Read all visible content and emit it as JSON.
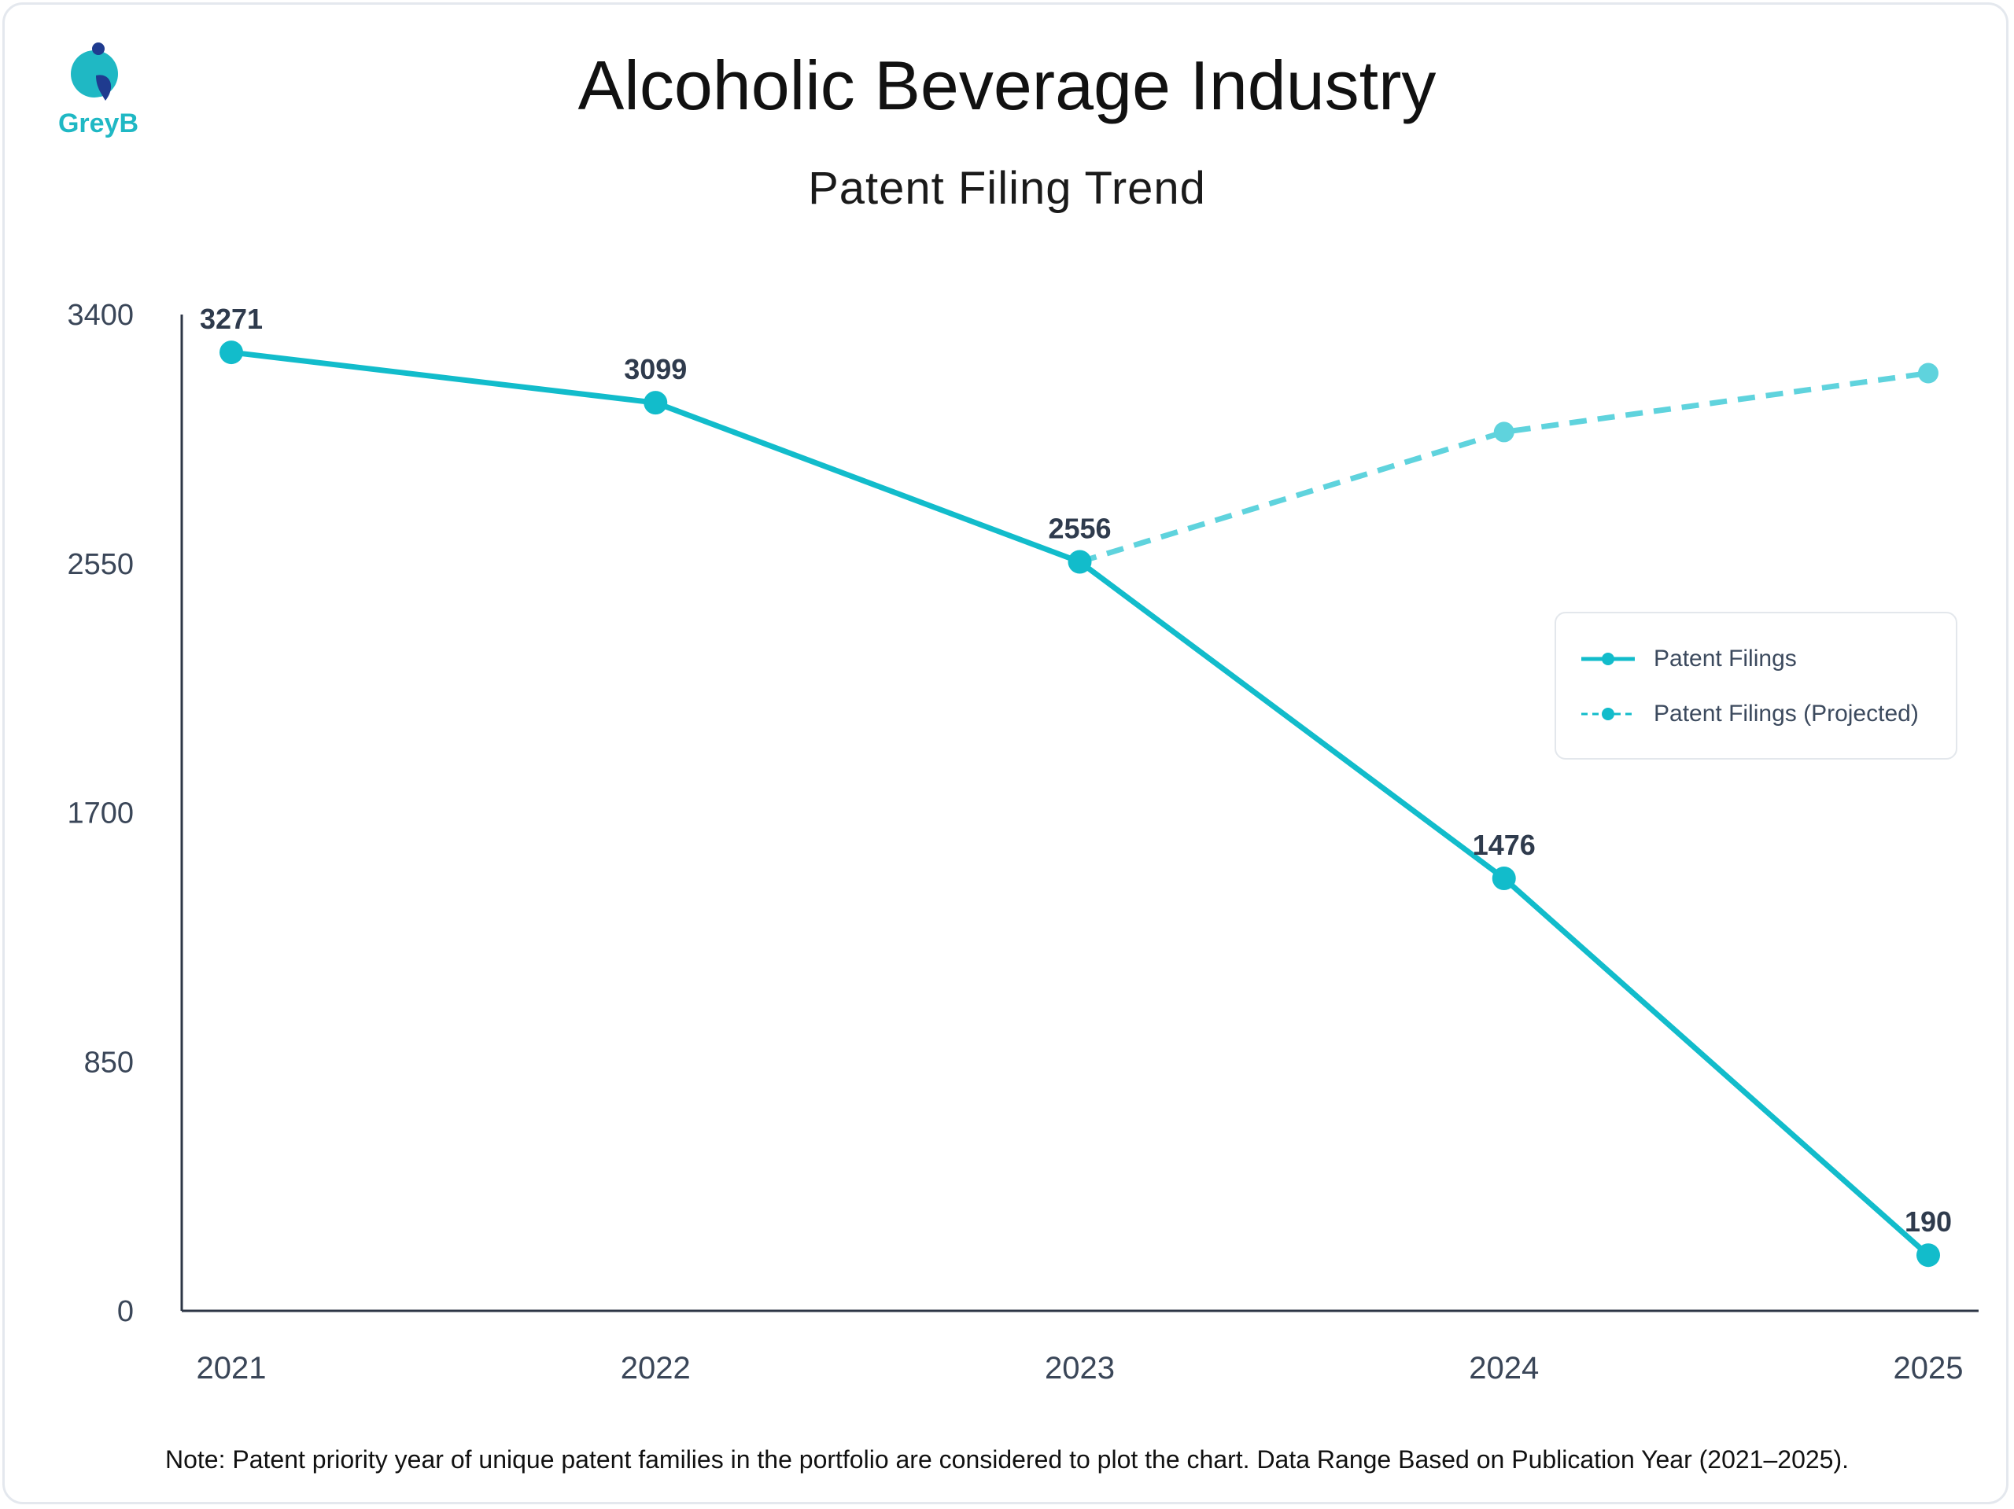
{
  "header": {
    "logo_text": "GreyB",
    "title": "Alcoholic Beverage Industry",
    "subtitle": "Patent Filing Trend"
  },
  "footer": {
    "note": "Note: Patent priority year of unique patent families in the portfolio are considered to plot the chart. Data Range Based on Publication Year (2021–2025)."
  },
  "colors": {
    "actual": "#12bccb",
    "projected": "#5fd3dd",
    "axis": "#2d3646"
  },
  "chart_data": {
    "type": "line",
    "title": "Alcoholic Beverage Industry",
    "subtitle": "Patent Filing Trend",
    "x": [
      "2021",
      "2022",
      "2023",
      "2024",
      "2025"
    ],
    "ylim": [
      0,
      3400
    ],
    "yticks": [
      "0",
      "850",
      "1700",
      "2550",
      "3400"
    ],
    "grid": false,
    "legend_position": "right",
    "series": [
      {
        "name": "Patent Filings",
        "style": "solid",
        "values": [
          3271,
          3099,
          2556,
          1476,
          190
        ],
        "labels": [
          "3271",
          "3099",
          "2556",
          "1476",
          "190"
        ]
      },
      {
        "name": "Patent Filings (Projected)",
        "style": "dashed",
        "values": [
          null,
          null,
          2556,
          2999,
          3200
        ]
      }
    ]
  }
}
